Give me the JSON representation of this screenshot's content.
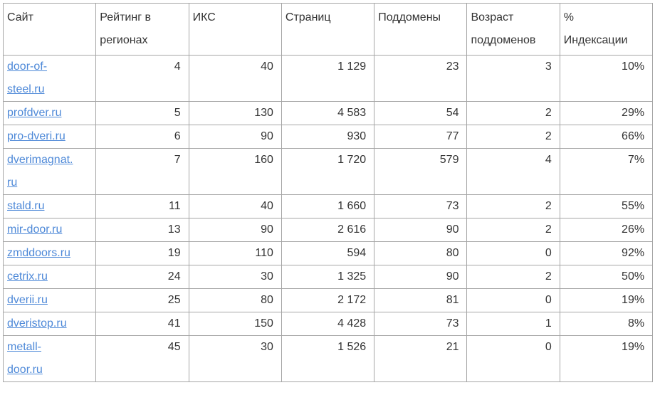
{
  "ui": {
    "colors": {
      "background": "#ffffff",
      "border": "#a6a6a6",
      "text": "#333333",
      "link": "#4e89d8"
    }
  },
  "chart_data": {
    "type": "table",
    "columns": [
      "Сайт",
      "Рейтинг в\nрегионах",
      "ИКС",
      "Страниц",
      "Поддомены",
      "Возраст\nподдоменов",
      "%\nИндексации"
    ],
    "column_align": [
      "left",
      "right",
      "right",
      "right",
      "right",
      "right",
      "right"
    ],
    "link_column": 0,
    "rows": [
      [
        "door-of-steel.ru",
        "4",
        "40",
        "1 129",
        "23",
        "3",
        "10%"
      ],
      [
        "profdver.ru",
        "5",
        "130",
        "4 583",
        "54",
        "2",
        "29%"
      ],
      [
        "pro-dveri.ru",
        "6",
        "90",
        "930",
        "77",
        "2",
        "66%"
      ],
      [
        "dverimagnat.ru",
        "7",
        "160",
        "1 720",
        "579",
        "4",
        "7%"
      ],
      [
        "stald.ru",
        "11",
        "40",
        "1 660",
        "73",
        "2",
        "55%"
      ],
      [
        "mir-door.ru",
        "13",
        "90",
        "2 616",
        "90",
        "2",
        "26%"
      ],
      [
        "zmddoors.ru",
        "19",
        "110",
        "594",
        "80",
        "0",
        "92%"
      ],
      [
        "cetrix.ru",
        "24",
        "30",
        "1 325",
        "90",
        "2",
        "50%"
      ],
      [
        "dverii.ru",
        "25",
        "80",
        "2 172",
        "81",
        "0",
        "19%"
      ],
      [
        "dveristop.ru",
        "41",
        "150",
        "4 428",
        "73",
        "1",
        "8%"
      ],
      [
        "metall-door.ru",
        "45",
        "30",
        "1 526",
        "21",
        "0",
        "19%"
      ]
    ]
  }
}
